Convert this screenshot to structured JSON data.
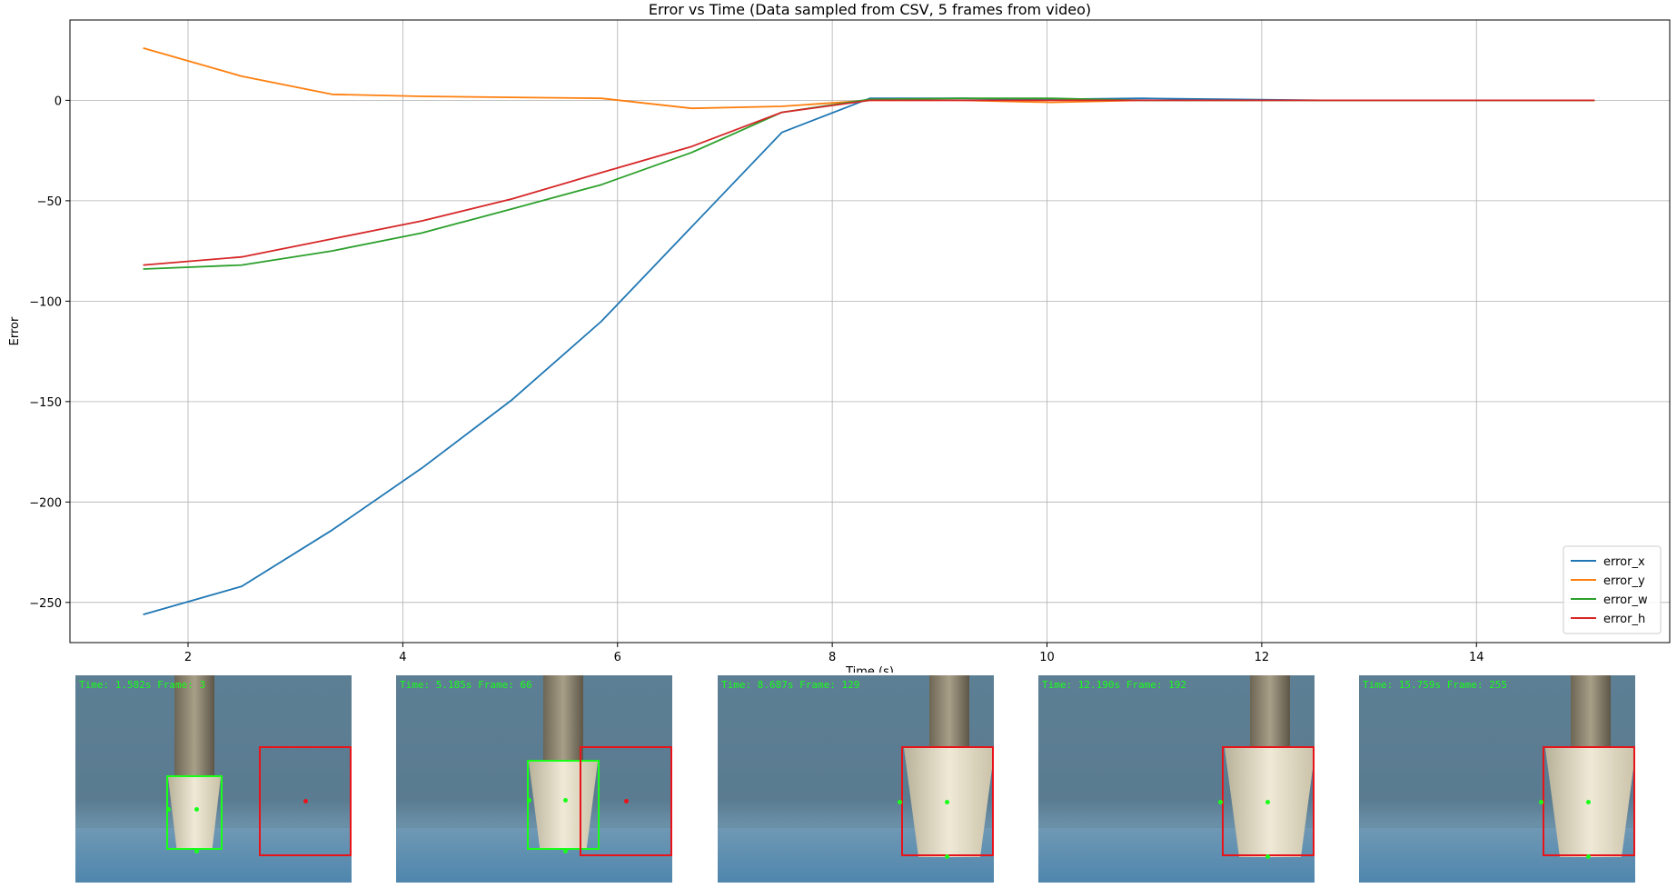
{
  "chart_data": {
    "type": "line",
    "title": "Error vs Time (Data sampled from CSV, 5 frames from video)",
    "xlabel": "Time (s)",
    "ylabel": "Error",
    "xlim": [
      0.9,
      15.8
    ],
    "ylim": [
      -270,
      40
    ],
    "xticks": [
      2,
      4,
      6,
      8,
      10,
      12,
      14
    ],
    "yticks": [
      0,
      -50,
      -100,
      -150,
      -200,
      -250
    ],
    "grid": true,
    "legend_position": "lower-right",
    "x": [
      1.582,
      2.5,
      3.34,
      4.18,
      5.02,
      5.85,
      6.69,
      7.53,
      8.35,
      9.2,
      10.04,
      10.88,
      11.72,
      12.56,
      13.4,
      14.24,
      15.1
    ],
    "series": [
      {
        "name": "error_x",
        "color": "#1f77b4",
        "values": [
          -256,
          -242,
          -214,
          -183,
          -149,
          -110,
          -63,
          -16,
          1,
          1,
          0.5,
          1,
          0.5,
          0,
          0,
          0,
          0
        ]
      },
      {
        "name": "error_y",
        "color": "#ff7f0e",
        "values": [
          26,
          12,
          3,
          2,
          1.5,
          1,
          -4,
          -3,
          0,
          0,
          -1,
          0,
          0,
          0,
          0,
          0,
          0
        ]
      },
      {
        "name": "error_w",
        "color": "#2ca02c",
        "values": [
          -84,
          -82,
          -75,
          -66,
          -54,
          -42,
          -26,
          -6,
          0.5,
          1,
          1,
          0,
          0,
          0,
          0,
          0,
          0
        ]
      },
      {
        "name": "error_h",
        "color": "#d62728",
        "values": [
          -82,
          -78,
          -69,
          -60,
          -49,
          -36,
          -23,
          -6,
          0,
          0,
          0,
          0,
          0,
          0,
          0,
          0,
          0
        ]
      }
    ]
  },
  "frames": [
    {
      "label": "Time: 1.582s Frame: 3",
      "target_box_separate": true
    },
    {
      "label": "Time: 5.185s Frame: 66",
      "target_box_separate": true
    },
    {
      "label": "Time: 8.687s Frame: 129",
      "target_box_separate": false
    },
    {
      "label": "Time: 12.190s Frame: 192",
      "target_box_separate": false
    },
    {
      "label": "Time: 15.759s Frame: 255",
      "target_box_separate": false
    }
  ],
  "colors": {
    "detection_box": "#19ff19",
    "target_box": "#e8141a",
    "grid": "#b0b0b0"
  }
}
